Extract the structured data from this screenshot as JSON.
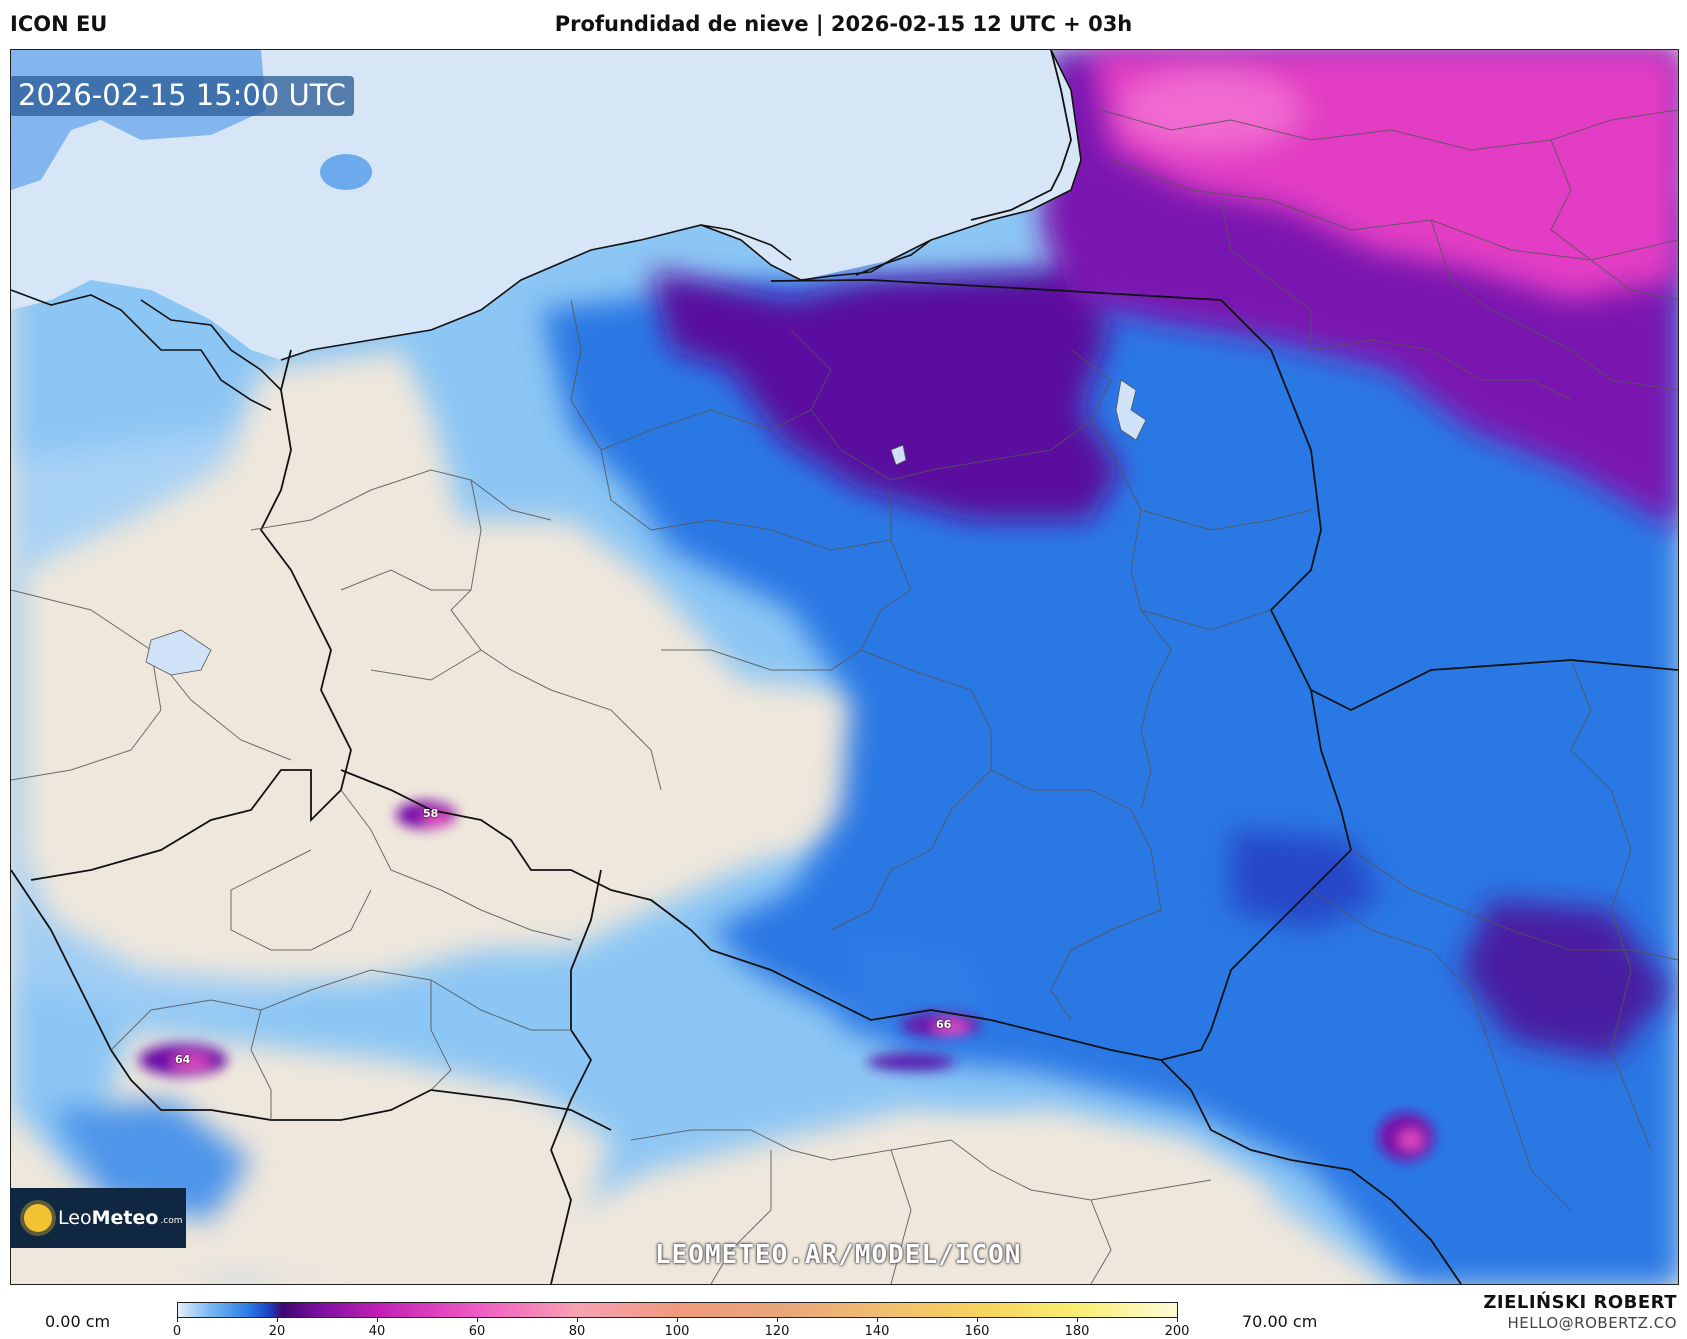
{
  "header": {
    "model": "ICON EU",
    "title": "Profundidad de nieve | 2026-02-15 12 UTC + 03h"
  },
  "map": {
    "valid_time": "2026-02-15 15:00 UTC",
    "watermark": "LEOMETEO.AR/MODEL/ICON",
    "logo": {
      "name_light": "Leo",
      "name_bold": "Meteo",
      "domain": ".com"
    },
    "peaks": [
      {
        "label": "58"
      },
      {
        "label": "66"
      },
      {
        "label": "64"
      }
    ],
    "colors": {
      "land": "#efe7dc",
      "sea": "#d6e6f7",
      "light_snow": "#8cc6f4",
      "moderate_snow": "#2a78e4",
      "deep_snow": "#5a0c9e",
      "heavy_snow": "#e23ec4"
    }
  },
  "colorbar": {
    "min_label": "0.00 cm",
    "max_label": "70.00 cm",
    "ticks": [
      "0",
      "20",
      "40",
      "60",
      "80",
      "100",
      "120",
      "140",
      "160",
      "180",
      "200"
    ]
  },
  "credit": {
    "author": "ZIELIŃSKI ROBERT",
    "email": "HELLO@ROBERTZ.CO"
  }
}
